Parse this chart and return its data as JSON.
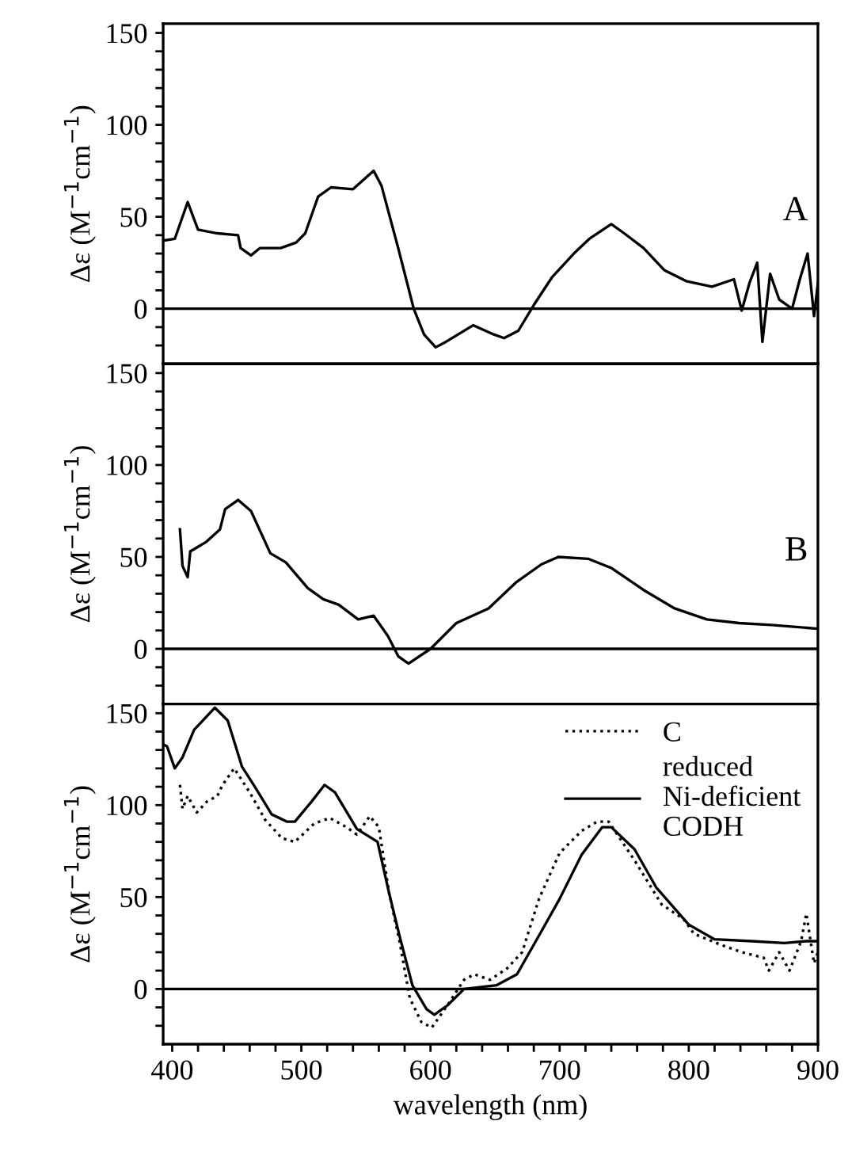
{
  "chart_data": [
    {
      "type": "line",
      "ylabel": "Δε (M$^{−1}$cm$^{−1}$)",
      "annotations": [
        "A"
      ],
      "xlim": [
        393,
        900
      ],
      "ylim": [
        -30,
        155
      ],
      "yticks": [
        {
          "value": -20,
          "label": null
        },
        {
          "value": -10,
          "label": null
        },
        0,
        {
          "value": 10,
          "label": null
        },
        {
          "value": 20,
          "label": null
        },
        {
          "value": 30,
          "label": null
        },
        {
          "value": 40,
          "label": null
        },
        50,
        {
          "value": 60,
          "label": null
        },
        {
          "value": 70,
          "label": null
        },
        {
          "value": 80,
          "label": null
        },
        {
          "value": 90,
          "label": null
        },
        100,
        {
          "value": 110,
          "label": null
        },
        {
          "value": 120,
          "label": null
        },
        {
          "value": 130,
          "label": null
        },
        {
          "value": 140,
          "label": null
        },
        150
      ],
      "tick_labels": "y",
      "grid": false,
      "legend": false,
      "ref_lines": [
        {
          "axis": "y",
          "value": 0,
          "color": "#000000"
        }
      ],
      "series": [
        {
          "color": "#000000",
          "line_style": "solid",
          "x": [
            393,
            402,
            412,
            420,
            435,
            451,
            453,
            461,
            468,
            484,
            496,
            503,
            513,
            523,
            540,
            556,
            562,
            575,
            587,
            595,
            604,
            612,
            633,
            649,
            657,
            668,
            680,
            694,
            711,
            723,
            740,
            750,
            765,
            781,
            798,
            818,
            835,
            841,
            847,
            853,
            857,
            863,
            870,
            880,
            886,
            892,
            897,
            900
          ],
          "values": [
            37,
            38,
            58,
            43,
            41,
            40,
            33,
            29,
            33,
            33,
            36,
            41,
            61,
            66,
            65,
            75,
            67,
            33,
            0,
            -14,
            -21,
            -18,
            -9,
            -14,
            -16,
            -12,
            2,
            17,
            30,
            38,
            46,
            41,
            33,
            21,
            15,
            12,
            16,
            -1,
            14,
            25,
            -18,
            19,
            5,
            0,
            16,
            30,
            -4,
            14
          ]
        }
      ]
    },
    {
      "type": "line",
      "ylabel": "Δε (M$^{−1}$cm$^{−1}$)",
      "annotations": [
        "B"
      ],
      "xlim": [
        393,
        900
      ],
      "ylim": [
        -30,
        155
      ],
      "yticks": [
        {
          "value": -20,
          "label": null
        },
        {
          "value": -10,
          "label": null
        },
        0,
        {
          "value": 10,
          "label": null
        },
        {
          "value": 20,
          "label": null
        },
        {
          "value": 30,
          "label": null
        },
        {
          "value": 40,
          "label": null
        },
        50,
        {
          "value": 60,
          "label": null
        },
        {
          "value": 70,
          "label": null
        },
        {
          "value": 80,
          "label": null
        },
        {
          "value": 90,
          "label": null
        },
        100,
        {
          "value": 110,
          "label": null
        },
        {
          "value": 120,
          "label": null
        },
        {
          "value": 130,
          "label": null
        },
        {
          "value": 140,
          "label": null
        },
        150
      ],
      "tick_labels": "y",
      "grid": false,
      "legend": false,
      "ref_lines": [
        {
          "axis": "y",
          "value": 0,
          "color": "#000000"
        }
      ],
      "series": [
        {
          "color": "#000000",
          "line_style": "solid",
          "x": [
            406,
            408,
            412,
            414,
            426,
            437,
            441,
            451,
            461,
            476,
            488,
            505,
            517,
            529,
            544,
            556,
            567,
            575,
            583,
            600,
            620,
            645,
            666,
            686,
            699,
            722,
            740,
            765,
            789,
            814,
            839,
            864,
            899
          ],
          "values": [
            65,
            45,
            39,
            53,
            58,
            65,
            76,
            81,
            75,
            52,
            47,
            33,
            27,
            24,
            16,
            18,
            7,
            -4,
            -8,
            0,
            14,
            22,
            36,
            46,
            50,
            49,
            44,
            32,
            22,
            16,
            14,
            13,
            11
          ]
        }
      ]
    },
    {
      "type": "line",
      "ylabel": "Δε (M$^{−1}$cm$^{−1}$)",
      "xlabel": "wavelength (nm)",
      "xlim": [
        393,
        900
      ],
      "ylim": [
        -30,
        155
      ],
      "xticks": [
        400,
        {
          "value": 420,
          "label": null
        },
        {
          "value": 440,
          "label": null
        },
        {
          "value": 460,
          "label": null
        },
        {
          "value": 480,
          "label": null
        },
        500,
        {
          "value": 520,
          "label": null
        },
        {
          "value": 540,
          "label": null
        },
        {
          "value": 560,
          "label": null
        },
        {
          "value": 580,
          "label": null
        },
        600,
        {
          "value": 620,
          "label": null
        },
        {
          "value": 640,
          "label": null
        },
        {
          "value": 660,
          "label": null
        },
        {
          "value": 680,
          "label": null
        },
        700,
        {
          "value": 720,
          "label": null
        },
        {
          "value": 740,
          "label": null
        },
        {
          "value": 760,
          "label": null
        },
        {
          "value": 780,
          "label": null
        },
        800,
        {
          "value": 820,
          "label": null
        },
        {
          "value": 840,
          "label": null
        },
        {
          "value": 860,
          "label": null
        },
        {
          "value": 880,
          "label": null
        },
        900
      ],
      "yticks": [
        {
          "value": -20,
          "label": null
        },
        {
          "value": -10,
          "label": null
        },
        0,
        {
          "value": 10,
          "label": null
        },
        {
          "value": 20,
          "label": null
        },
        {
          "value": 30,
          "label": null
        },
        {
          "value": 40,
          "label": null
        },
        50,
        {
          "value": 60,
          "label": null
        },
        {
          "value": 70,
          "label": null
        },
        {
          "value": 80,
          "label": null
        },
        {
          "value": 90,
          "label": null
        },
        100,
        {
          "value": 110,
          "label": null
        },
        {
          "value": 120,
          "label": null
        },
        {
          "value": 130,
          "label": null
        },
        {
          "value": 140,
          "label": null
        },
        150
      ],
      "grid": false,
      "legend": "top right",
      "ref_lines": [
        {
          "axis": "y",
          "value": 0,
          "color": "#000000"
        }
      ],
      "series": [
        {
          "name": "C",
          "color": "#000000",
          "line_style": "dotted",
          "x": [
            406,
            408,
            412,
            419,
            427,
            435,
            439,
            448,
            460,
            472,
            485,
            495,
            510,
            522,
            535,
            543,
            553,
            560,
            568,
            576,
            584,
            593,
            601,
            613,
            626,
            634,
            646,
            659,
            671,
            684,
            700,
            717,
            729,
            738,
            758,
            779,
            796,
            804,
            825,
            841,
            858,
            862,
            870,
            878,
            887,
            891,
            897,
            900
          ],
          "values": [
            111,
            98,
            105,
            96,
            102,
            105,
            111,
            120,
            107,
            92,
            82,
            80,
            90,
            93,
            88,
            84,
            94,
            88,
            52,
            26,
            -5,
            -18,
            -21,
            -9,
            5,
            8,
            5,
            11,
            20,
            49,
            74,
            86,
            91,
            91,
            70,
            46,
            38,
            30,
            24,
            20,
            17,
            10,
            20,
            10,
            26,
            41,
            14,
            20
          ]
        },
        {
          "name": "reduced\nNi-deficient\nCODH",
          "color": "#000000",
          "line_style": "solid",
          "x": [
            393,
            396,
            402,
            408,
            417,
            433,
            443,
            454,
            464,
            477,
            489,
            495,
            508,
            518,
            526,
            543,
            559,
            568,
            576,
            586,
            597,
            603,
            613,
            626,
            651,
            667,
            684,
            700,
            717,
            733,
            740,
            758,
            775,
            800,
            820,
            849,
            874,
            891,
            900
          ],
          "values": [
            133,
            132,
            120,
            126,
            141,
            153,
            146,
            121,
            110,
            95,
            91,
            91,
            102,
            111,
            107,
            87,
            80,
            52,
            29,
            2,
            -11,
            -14,
            -9,
            0,
            2,
            8,
            29,
            49,
            73,
            88,
            88,
            76,
            55,
            35,
            27,
            26,
            25,
            26,
            26
          ]
        }
      ]
    }
  ]
}
